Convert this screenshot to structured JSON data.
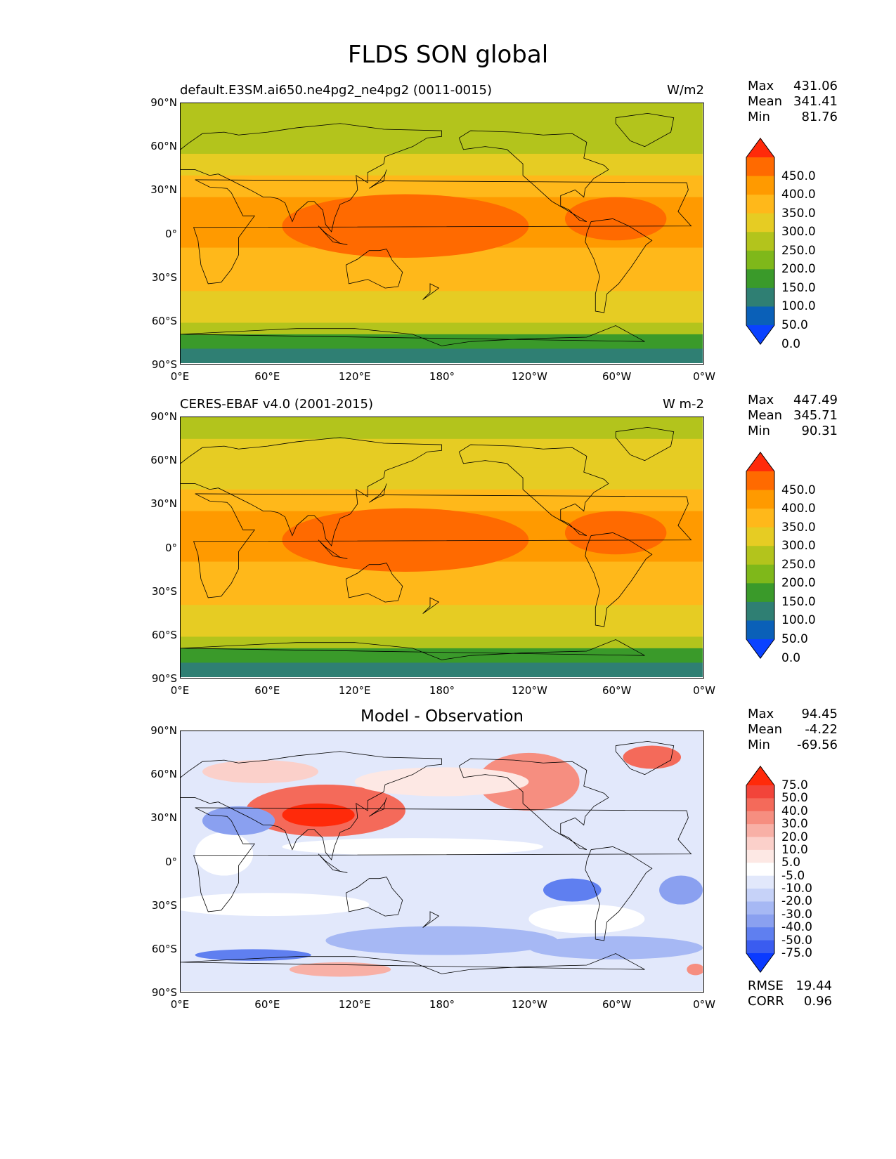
{
  "title": "FLDS SON global",
  "lat_ticks": [
    "90°N",
    "60°N",
    "30°N",
    "0°",
    "30°S",
    "60°S",
    "90°S"
  ],
  "lon_ticks": [
    "0°E",
    "60°E",
    "120°E",
    "180°",
    "120°W",
    "60°W",
    "0°W"
  ],
  "panels": [
    {
      "id": "model",
      "title_left": "default.E3SM.ai650.ne4pg2_ne4pg2 (0011-0015)",
      "title_right": "W/m2",
      "title_center": "",
      "stats": [
        {
          "label": "Max",
          "value": "431.06"
        },
        {
          "label": "Mean",
          "value": "341.41"
        },
        {
          "label": "Min",
          "value": "81.76"
        }
      ],
      "colorbar_labels": [
        "450.0",
        "400.0",
        "350.0",
        "300.0",
        "250.0",
        "200.0",
        "150.0",
        "100.0",
        "50.0",
        "0.0"
      ],
      "colorbar_colors": [
        "#ff2a0a",
        "#ff6a00",
        "#ff9a00",
        "#ffb81a",
        "#e6cc23",
        "#b3c41c",
        "#7fb81a",
        "#3a9a2a",
        "#2f7f73",
        "#0a60b8",
        "#0a42ff"
      ]
    },
    {
      "id": "obs",
      "title_left": "CERES-EBAF v4.0 (2001-2015)",
      "title_right": "W m-2",
      "title_center": "",
      "stats": [
        {
          "label": "Max",
          "value": "447.49"
        },
        {
          "label": "Mean",
          "value": "345.71"
        },
        {
          "label": "Min",
          "value": "90.31"
        }
      ],
      "colorbar_labels": [
        "450.0",
        "400.0",
        "350.0",
        "300.0",
        "250.0",
        "200.0",
        "150.0",
        "100.0",
        "50.0",
        "0.0"
      ],
      "colorbar_colors": [
        "#ff2a0a",
        "#ff6a00",
        "#ff9a00",
        "#ffb81a",
        "#e6cc23",
        "#b3c41c",
        "#7fb81a",
        "#3a9a2a",
        "#2f7f73",
        "#0a60b8",
        "#0a42ff"
      ]
    },
    {
      "id": "diff",
      "title_left": "",
      "title_right": "",
      "title_center": "Model - Observation",
      "stats": [
        {
          "label": "Max",
          "value": "94.45"
        },
        {
          "label": "Mean",
          "value": "-4.22"
        },
        {
          "label": "Min",
          "value": "-69.56"
        }
      ],
      "colorbar_labels": [
        "75.0",
        "50.0",
        "40.0",
        "30.0",
        "20.0",
        "10.0",
        "5.0",
        "-5.0",
        "-10.0",
        "-20.0",
        "-30.0",
        "-40.0",
        "-50.0",
        "-75.0"
      ],
      "colorbar_colors": [
        "#ff2a0a",
        "#f2443a",
        "#f46a5a",
        "#f68e80",
        "#f8b0a6",
        "#fbd0ca",
        "#fde8e4",
        "#ffffff",
        "#e2e8fb",
        "#c6d2f8",
        "#a6b8f4",
        "#8aa0f0",
        "#5f7ff0",
        "#3a5cf0",
        "#0a3aff"
      ],
      "extra_stats": [
        {
          "label": "RMSE",
          "value": "19.44"
        },
        {
          "label": "CORR",
          "value": "0.96"
        }
      ]
    }
  ]
}
